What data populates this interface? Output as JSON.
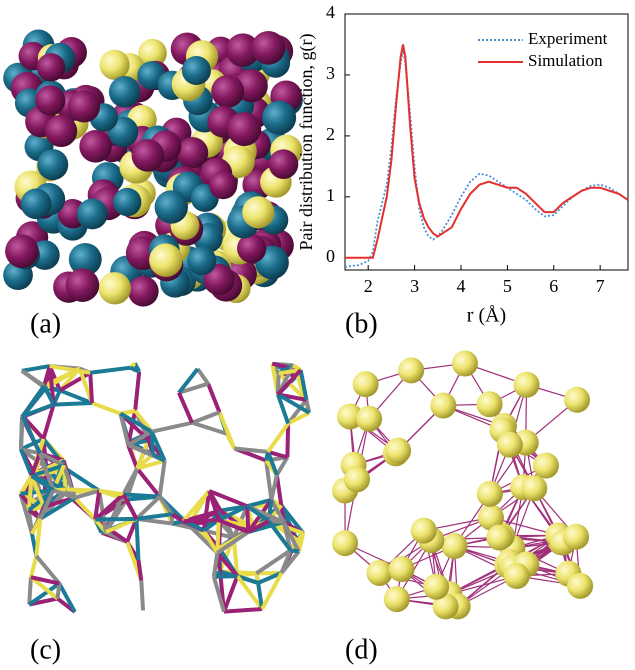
{
  "panels": {
    "a": "(a)",
    "b": "(b)",
    "c": "(c)",
    "d": "(d)"
  },
  "chart_data": {
    "type": "line",
    "xlabel": "r (Å)",
    "ylabel": "Pair distribution function, g(r)",
    "x": [
      1.5,
      1.8,
      2.0,
      2.1,
      2.2,
      2.4,
      2.5,
      2.6,
      2.7,
      2.75,
      2.8,
      2.9,
      3.0,
      3.1,
      3.2,
      3.3,
      3.4,
      3.5,
      3.6,
      3.8,
      4.0,
      4.2,
      4.4,
      4.6,
      4.8,
      5.0,
      5.2,
      5.4,
      5.6,
      5.8,
      6.0,
      6.2,
      6.4,
      6.6,
      6.8,
      7.0,
      7.2,
      7.4,
      7.6
    ],
    "series": [
      {
        "name": "Experiment",
        "color": "#4a8fd6",
        "style": "dotted",
        "values": [
          -0.15,
          -0.12,
          -0.05,
          0.1,
          0.6,
          1.2,
          1.8,
          2.6,
          3.2,
          3.4,
          3.2,
          2.4,
          1.5,
          0.8,
          0.5,
          0.35,
          0.3,
          0.35,
          0.45,
          0.7,
          1.0,
          1.25,
          1.38,
          1.35,
          1.25,
          1.15,
          1.05,
          0.95,
          0.8,
          0.68,
          0.7,
          0.85,
          1.0,
          1.1,
          1.18,
          1.2,
          1.15,
          1.05,
          0.95
        ]
      },
      {
        "name": "Simulation",
        "color": "#e3302d",
        "style": "solid",
        "values": [
          0,
          0,
          0,
          0,
          0.3,
          1.0,
          1.6,
          2.5,
          3.3,
          3.5,
          3.3,
          2.2,
          1.3,
          0.9,
          0.65,
          0.5,
          0.4,
          0.35,
          0.4,
          0.5,
          0.8,
          1.05,
          1.2,
          1.25,
          1.2,
          1.15,
          1.15,
          1.05,
          0.9,
          0.75,
          0.75,
          0.9,
          1.0,
          1.1,
          1.15,
          1.15,
          1.1,
          1.05,
          0.95
        ]
      }
    ],
    "xlim": [
      1.5,
      7.6
    ],
    "xticks": [
      2,
      3,
      4,
      5,
      6,
      7
    ],
    "ylim": [
      -0.2,
      4
    ],
    "yticks": [
      0,
      1,
      2,
      3,
      4
    ],
    "legend": "upper right"
  }
}
